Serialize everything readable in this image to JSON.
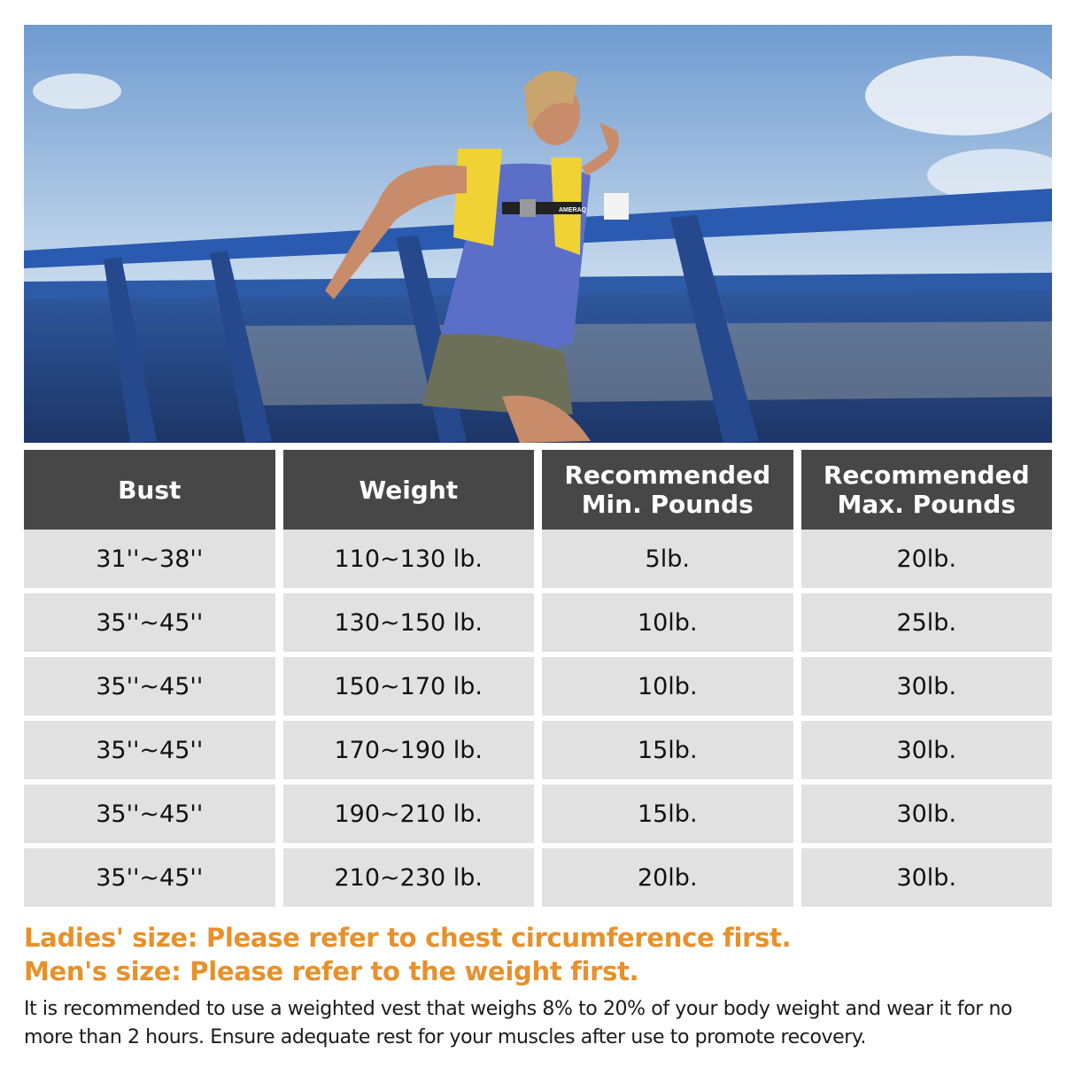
{
  "photo": {
    "alt_subject": "woman-running-in-weighted-vest",
    "vest_brand": "AMERAQ"
  },
  "table": {
    "headers": [
      "Bust",
      "Weight",
      "Recommended\nMin. Pounds",
      "Recommended\nMax. Pounds"
    ],
    "rows": [
      [
        "31''~38''",
        "110~130 lb.",
        "5lb.",
        "20lb."
      ],
      [
        "35''~45''",
        "130~150 lb.",
        "10lb.",
        "25lb."
      ],
      [
        "35''~45''",
        "150~170 lb.",
        "10lb.",
        "30lb."
      ],
      [
        "35''~45''",
        "170~190 lb.",
        "15lb.",
        "30lb."
      ],
      [
        "35''~45''",
        "190~210 lb.",
        "15lb.",
        "30lb."
      ],
      [
        "35''~45''",
        "210~230 lb.",
        "20lb.",
        "30lb."
      ]
    ]
  },
  "notes": {
    "ladies": "Ladies' size: Please refer to chest circumference first.",
    "men": "Men's size: Please refer to the weight first.",
    "body": "It is recommended to use a weighted vest that weighs 8% to 20% of your body weight and wear it for no more than 2 hours. Ensure adequate rest for your muscles after use to promote recovery."
  },
  "colors": {
    "header_bg": "#474747",
    "cell_bg": "#e1e1e1",
    "accent": "#e8902a"
  }
}
